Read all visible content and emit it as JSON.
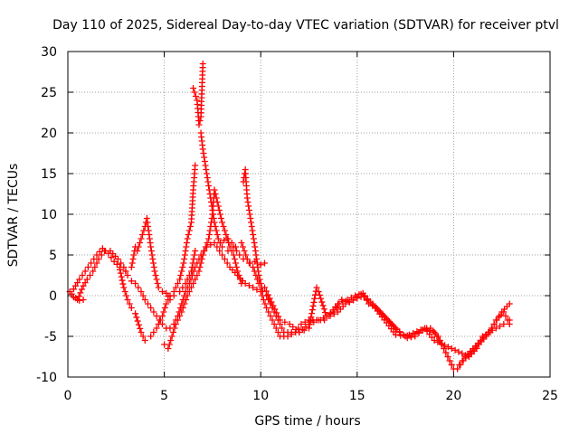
{
  "chart_data": {
    "type": "scatter",
    "title": "Day 110 of 2025, Sidereal Day-to-day VTEC variation (SDTVAR) for receiver ptvl",
    "xlabel": "GPS time / hours",
    "ylabel": "SDTVAR / TECUs",
    "xlim": [
      0,
      25
    ],
    "ylim": [
      -10,
      30
    ],
    "x_ticks": [
      0,
      5,
      10,
      15,
      20,
      25
    ],
    "y_ticks": [
      -10,
      -5,
      0,
      5,
      10,
      15,
      20,
      25,
      30
    ],
    "grid": true,
    "marker": "+",
    "color": "#ff0000",
    "series": [
      {
        "name": "s1",
        "points": [
          [
            0.1,
            0.5
          ],
          [
            0.2,
            0.2
          ],
          [
            0.3,
            -0.2
          ],
          [
            0.5,
            -0.5
          ],
          [
            0.8,
            1.2
          ],
          [
            1.0,
            2.0
          ],
          [
            1.3,
            3.0
          ],
          [
            1.6,
            4.5
          ],
          [
            1.9,
            5.5
          ],
          [
            2.2,
            5.5
          ],
          [
            2.6,
            4.5
          ],
          [
            2.9,
            3.5
          ],
          [
            3.1,
            2.5
          ],
          [
            3.3,
            1.8
          ],
          [
            3.5,
            1.5
          ],
          [
            3.8,
            0.5
          ],
          [
            4.0,
            -0.5
          ],
          [
            4.3,
            -1.5
          ],
          [
            4.6,
            -2.5
          ],
          [
            4.9,
            -3.5
          ],
          [
            5.1,
            -4.0
          ],
          [
            5.3,
            -4.0
          ],
          [
            5.5,
            -3.5
          ],
          [
            5.7,
            -2.5
          ],
          [
            5.9,
            -1.0
          ],
          [
            6.1,
            0.5
          ],
          [
            6.3,
            1.5
          ],
          [
            6.6,
            3.5
          ],
          [
            6.9,
            5.0
          ],
          [
            7.2,
            6.0
          ],
          [
            7.6,
            6.5
          ],
          [
            8.0,
            5.0
          ],
          [
            8.4,
            3.5
          ],
          [
            8.8,
            2.5
          ],
          [
            9.2,
            1.5
          ],
          [
            9.6,
            1.0
          ],
          [
            10.0,
            0.5
          ],
          [
            10.3,
            -1.5
          ],
          [
            10.5,
            -2.5
          ],
          [
            10.7,
            -3.5
          ],
          [
            11.0,
            -5.0
          ],
          [
            11.4,
            -5.0
          ],
          [
            11.8,
            -4.5
          ],
          [
            12.1,
            -3.5
          ],
          [
            12.5,
            -3.0
          ],
          [
            12.9,
            -3.0
          ],
          [
            13.3,
            -3.0
          ],
          [
            13.6,
            -2.5
          ],
          [
            14.0,
            -2.0
          ],
          [
            14.4,
            -1.0
          ],
          [
            14.8,
            -0.5
          ],
          [
            15.2,
            0.2
          ],
          [
            15.5,
            -0.5
          ],
          [
            15.8,
            -1.0
          ],
          [
            16.2,
            -2.0
          ],
          [
            16.6,
            -3.0
          ],
          [
            17.0,
            -4.0
          ],
          [
            17.4,
            -4.8
          ],
          [
            17.8,
            -5.0
          ],
          [
            18.2,
            -4.5
          ],
          [
            18.6,
            -4.0
          ],
          [
            19.0,
            -4.5
          ],
          [
            19.4,
            -6.0
          ],
          [
            19.8,
            -8.0
          ],
          [
            20.0,
            -9.0
          ],
          [
            20.3,
            -8.5
          ],
          [
            20.6,
            -7.5
          ],
          [
            21.0,
            -6.5
          ],
          [
            21.4,
            -5.5
          ],
          [
            21.8,
            -4.5
          ],
          [
            22.2,
            -4.0
          ],
          [
            22.6,
            -3.5
          ],
          [
            22.9,
            -3.0
          ]
        ]
      },
      {
        "name": "s2",
        "points": [
          [
            0.3,
            0.8
          ],
          [
            0.6,
            2.0
          ],
          [
            0.9,
            3.0
          ],
          [
            1.2,
            4.0
          ],
          [
            1.5,
            5.0
          ],
          [
            1.8,
            5.8
          ],
          [
            2.1,
            5.2
          ],
          [
            2.4,
            4.2
          ],
          [
            2.7,
            3.5
          ],
          [
            3.0,
            3.0
          ],
          [
            3.3,
            3.5
          ],
          [
            3.5,
            6.0
          ],
          [
            3.6,
            5.5
          ],
          [
            3.8,
            7.0
          ],
          [
            4.0,
            8.5
          ],
          [
            4.1,
            9.5
          ],
          [
            4.3,
            6.0
          ],
          [
            4.5,
            3.0
          ],
          [
            4.7,
            1.0
          ],
          [
            4.9,
            0.5
          ],
          [
            5.1,
            0.3
          ],
          [
            5.3,
            -0.5
          ],
          [
            5.5,
            0.0
          ],
          [
            5.8,
            0.5
          ],
          [
            6.1,
            1.5
          ],
          [
            6.4,
            3.0
          ],
          [
            6.6,
            5.5
          ]
        ]
      },
      {
        "name": "s3",
        "points": [
          [
            2.7,
            3.2
          ],
          [
            2.9,
            1.0
          ],
          [
            3.1,
            -0.5
          ],
          [
            3.3,
            -1.5
          ],
          [
            3.5,
            -2.2
          ],
          [
            3.8,
            -4.5
          ],
          [
            4.0,
            -5.5
          ],
          [
            4.3,
            -5.0
          ],
          [
            4.6,
            -4.0
          ],
          [
            4.9,
            -2.5
          ],
          [
            5.1,
            -1.0
          ],
          [
            5.3,
            0.0
          ],
          [
            5.5,
            0.5
          ],
          [
            5.8,
            2.0
          ],
          [
            6.0,
            4.0
          ],
          [
            6.2,
            7.0
          ],
          [
            6.4,
            9.0
          ],
          [
            6.5,
            13.0
          ],
          [
            6.6,
            16.0
          ],
          [
            6.5,
            25.5
          ],
          [
            6.7,
            24.0
          ],
          [
            6.8,
            21.0
          ],
          [
            6.9,
            22.0
          ],
          [
            7.0,
            28.5
          ],
          [
            6.9,
            20.0
          ],
          [
            7.0,
            18.0
          ],
          [
            7.2,
            15.0
          ],
          [
            7.4,
            12.0
          ],
          [
            7.6,
            9.0
          ],
          [
            7.8,
            7.0
          ],
          [
            8.0,
            6.0
          ],
          [
            8.3,
            5.5
          ],
          [
            8.6,
            6.0
          ],
          [
            8.9,
            5.0
          ],
          [
            9.1,
            4.5
          ],
          [
            9.4,
            4.0
          ],
          [
            9.7,
            4.2
          ],
          [
            10.0,
            3.8
          ],
          [
            10.2,
            4.0
          ]
        ]
      },
      {
        "name": "s4",
        "points": [
          [
            5.0,
            -6.0
          ],
          [
            5.2,
            -6.5
          ],
          [
            5.4,
            -5.0
          ],
          [
            5.6,
            -3.5
          ],
          [
            5.9,
            -2.0
          ],
          [
            6.2,
            0.0
          ],
          [
            6.5,
            1.5
          ],
          [
            6.8,
            3.0
          ],
          [
            7.0,
            5.0
          ],
          [
            7.3,
            7.0
          ],
          [
            7.5,
            10.0
          ],
          [
            7.6,
            13.0
          ],
          [
            7.8,
            11.0
          ],
          [
            8.0,
            9.0
          ],
          [
            8.2,
            7.5
          ],
          [
            8.4,
            6.0
          ],
          [
            8.6,
            5.0
          ],
          [
            8.8,
            3.0
          ],
          [
            9.0,
            1.5
          ],
          [
            9.1,
            14.0
          ],
          [
            9.2,
            15.5
          ],
          [
            9.3,
            12.0
          ],
          [
            9.5,
            9.0
          ],
          [
            9.7,
            6.0
          ],
          [
            9.9,
            2.5
          ],
          [
            10.1,
            0.5
          ],
          [
            10.3,
            0.0
          ],
          [
            10.5,
            -1.0
          ],
          [
            10.8,
            -2.5
          ],
          [
            11.2,
            -4.5
          ],
          [
            11.6,
            -4.5
          ],
          [
            12.0,
            -4.5
          ],
          [
            12.5,
            -3.5
          ],
          [
            13.0,
            -3.0
          ],
          [
            13.5,
            -2.5
          ],
          [
            14.0,
            -1.0
          ],
          [
            14.5,
            -0.5
          ],
          [
            14.9,
            0.0
          ],
          [
            15.3,
            0.3
          ],
          [
            15.6,
            -1.0
          ],
          [
            16.0,
            -1.5
          ],
          [
            16.4,
            -2.5
          ],
          [
            16.8,
            -3.5
          ],
          [
            17.2,
            -4.5
          ],
          [
            17.6,
            -5.2
          ],
          [
            18.0,
            -5.0
          ],
          [
            18.4,
            -4.2
          ],
          [
            18.8,
            -4.0
          ],
          [
            19.2,
            -5.0
          ],
          [
            19.6,
            -7.0
          ],
          [
            19.9,
            -8.5
          ],
          [
            20.2,
            -9.0
          ],
          [
            20.5,
            -8.0
          ],
          [
            20.9,
            -7.0
          ],
          [
            21.3,
            -6.0
          ],
          [
            21.7,
            -5.0
          ],
          [
            22.1,
            -3.5
          ],
          [
            22.5,
            -2.0
          ],
          [
            22.9,
            -1.0
          ]
        ]
      },
      {
        "name": "s5",
        "points": [
          [
            0.4,
            -0.3
          ],
          [
            0.6,
            -0.6
          ],
          [
            0.8,
            -0.5
          ],
          [
            7.9,
            6.5
          ],
          [
            8.1,
            6.8
          ],
          [
            8.3,
            7.0
          ],
          [
            8.5,
            6.5
          ],
          [
            8.7,
            6.0
          ],
          [
            9.0,
            6.5
          ],
          [
            9.3,
            4.5
          ],
          [
            9.6,
            3.5
          ],
          [
            9.9,
            1.5
          ],
          [
            10.2,
            1.0
          ],
          [
            11.0,
            -3.0
          ],
          [
            11.5,
            -3.5
          ],
          [
            12.0,
            -4.5
          ],
          [
            12.5,
            -4.0
          ],
          [
            12.9,
            1.0
          ],
          [
            13.0,
            0.5
          ],
          [
            13.4,
            -2.5
          ],
          [
            13.8,
            -2.0
          ],
          [
            14.2,
            -0.5
          ],
          [
            14.6,
            -0.8
          ],
          [
            15.0,
            -0.3
          ],
          [
            15.4,
            0.0
          ],
          [
            15.7,
            -0.8
          ],
          [
            17.0,
            -4.8
          ],
          [
            17.5,
            -5.0
          ],
          [
            18.5,
            -4.0
          ],
          [
            19.0,
            -5.5
          ],
          [
            20.8,
            -7.5
          ],
          [
            21.2,
            -6.5
          ],
          [
            21.5,
            -5.0
          ],
          [
            21.9,
            -4.5
          ],
          [
            22.2,
            -3.0
          ],
          [
            22.6,
            -2.0
          ],
          [
            22.9,
            -3.5
          ]
        ]
      }
    ]
  }
}
